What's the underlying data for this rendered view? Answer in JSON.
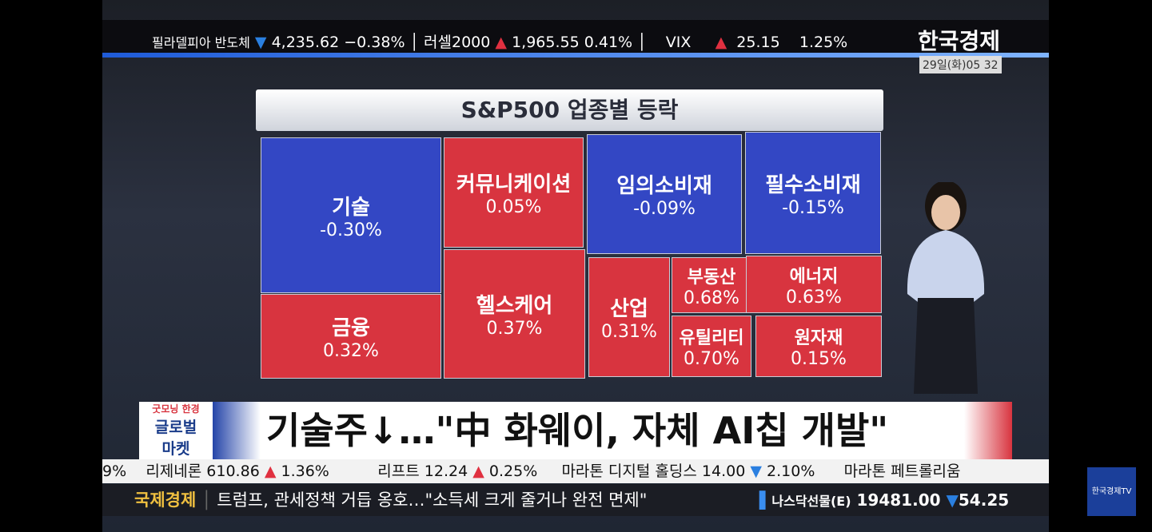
{
  "top_ticker": [
    {
      "name": "필라델피아 반도체",
      "value": "4,235.62",
      "change": "−0.38%"
    },
    {
      "name": "러셀2000",
      "value": "1,965.55",
      "change": "0.41%"
    },
    {
      "name": "VIX",
      "value": "25.15",
      "change": "1.25%"
    }
  ],
  "channel_logo": "한국경제",
  "timestamp": "29일(화)05 32",
  "treemap": {
    "title": "S&P500 업종별 등락",
    "tiles": [
      {
        "label": "기술",
        "value": "-0.30%",
        "color": "#3347c4"
      },
      {
        "label": "금융",
        "value": "0.32%",
        "color": "#d8343f"
      },
      {
        "label": "커뮤니케이션",
        "value": "0.05%",
        "color": "#d8343f"
      },
      {
        "label": "헬스케어",
        "value": "0.37%",
        "color": "#d8343f"
      },
      {
        "label": "임의소비재",
        "value": "-0.09%",
        "color": "#3347c4"
      },
      {
        "label": "필수소비재",
        "value": "-0.15%",
        "color": "#3347c4"
      },
      {
        "label": "산업",
        "value": "0.31%",
        "color": "#d8343f"
      },
      {
        "label": "부동산",
        "value": "0.68%",
        "color": "#d8343f"
      },
      {
        "label": "유틸리티",
        "value": "0.70%",
        "color": "#d8343f"
      },
      {
        "label": "에너지",
        "value": "0.63%",
        "color": "#d8343f"
      },
      {
        "label": "원자재",
        "value": "0.15%",
        "color": "#d8343f"
      }
    ]
  },
  "program_logo": {
    "line1": "굿모닝 한경",
    "line2": "글로벌",
    "line3": "마켓"
  },
  "headline": "기술주↓…\"中 화웨이, 자체 AI칩 개발\"",
  "stock_ticker": [
    {
      "text": "9%"
    },
    {
      "name": "리제네론",
      "value": "610.86",
      "change": "1.36%"
    },
    {
      "name": "리프트",
      "value": "12.24",
      "change": "0.25%"
    },
    {
      "name": "마라톤 디지털 홀딩스",
      "value": "14.00",
      "change": "2.10%"
    },
    {
      "name": "마라톤 페트롤리움"
    }
  ],
  "bottom_bar": {
    "section": "국제경제",
    "news": "트럼프, 관세정책 거듭 옹호…\"소득세 크게 줄거나 완전 면제\"",
    "futures_name": "나스닥선물(E)",
    "futures_value": "19481.00",
    "futures_change": "54.25"
  },
  "corner_logo": "한국경제TV"
}
